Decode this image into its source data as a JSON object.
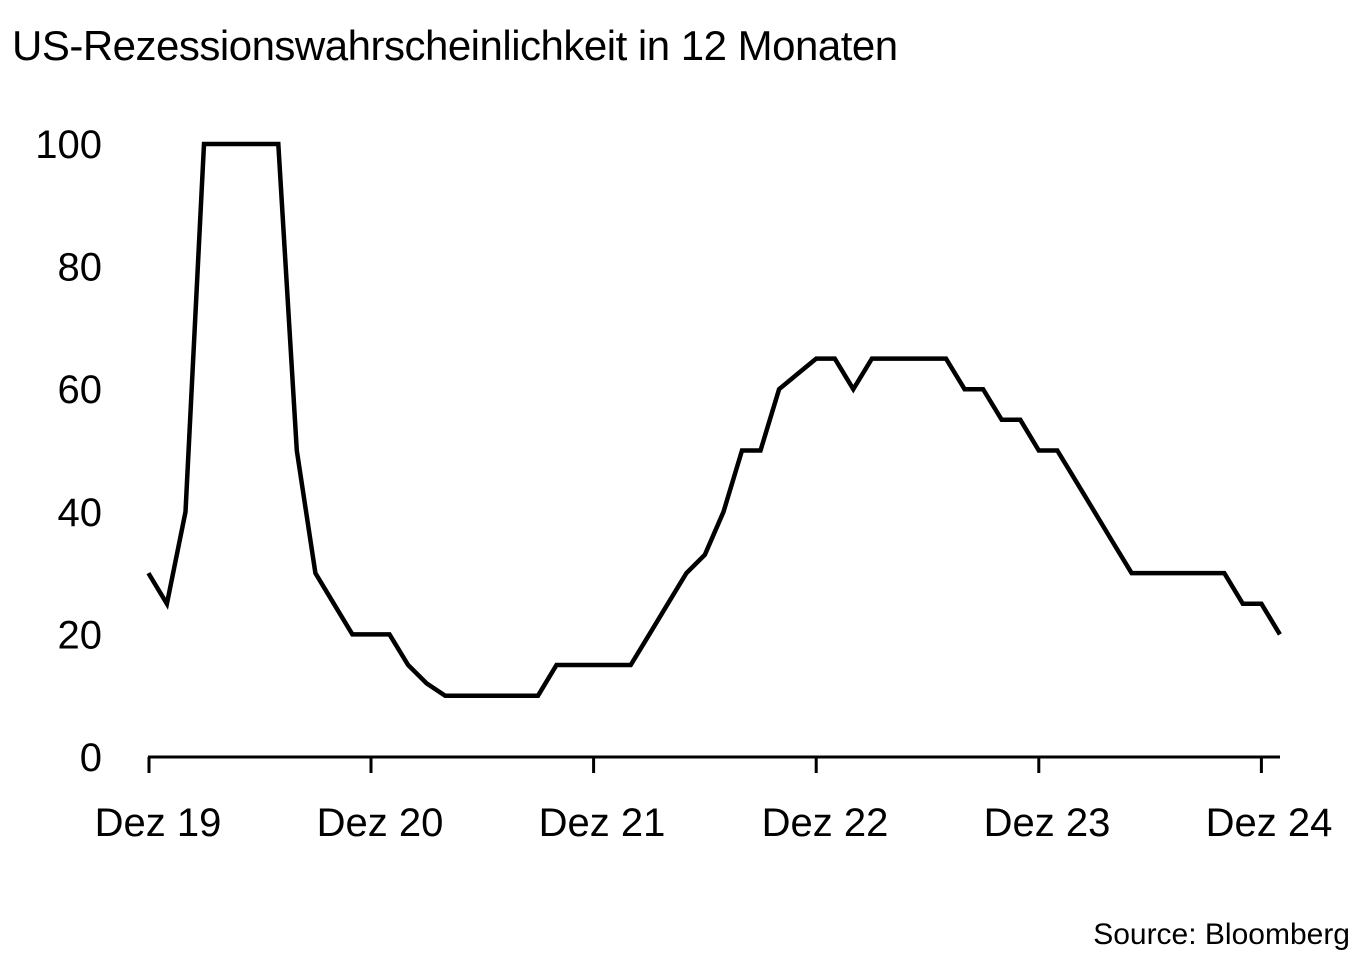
{
  "title": "US-Rezessionswahrscheinlichkeit in 12 Monaten",
  "source": "Source: Bloomberg",
  "colors": {
    "background": "#ffffff",
    "line": "#000000",
    "axis": "#000000",
    "text": "#000000"
  },
  "chart_data": {
    "type": "line",
    "title": "US-Rezessionswahrscheinlichkeit in 12 Monaten",
    "xlabel": "",
    "ylabel": "",
    "x_tick_labels": [
      "Dez 19",
      "Dez 20",
      "Dez 21",
      "Dez 22",
      "Dez 23",
      "Dez 24"
    ],
    "y_tick_labels": [
      "0",
      "20",
      "40",
      "60",
      "80",
      "100"
    ],
    "ylim": [
      0,
      100
    ],
    "xlim": [
      "2019-11",
      "2025-01"
    ],
    "grid": false,
    "legend": "none",
    "series": [
      {
        "x": [
          "2019-12",
          "2020-01",
          "2020-02",
          "2020-03",
          "2020-04",
          "2020-05",
          "2020-06",
          "2020-07",
          "2020-08",
          "2020-09",
          "2020-10",
          "2020-11",
          "2020-12",
          "2021-01",
          "2021-02",
          "2021-03",
          "2021-04",
          "2021-05",
          "2021-06",
          "2021-07",
          "2021-08",
          "2021-09",
          "2021-10",
          "2021-11",
          "2021-12",
          "2022-01",
          "2022-02",
          "2022-03",
          "2022-04",
          "2022-05",
          "2022-06",
          "2022-07",
          "2022-08",
          "2022-09",
          "2022-10",
          "2022-11",
          "2022-12",
          "2023-01",
          "2023-02",
          "2023-03",
          "2023-04",
          "2023-05",
          "2023-06",
          "2023-07",
          "2023-08",
          "2023-09",
          "2023-10",
          "2023-11",
          "2023-12",
          "2024-01",
          "2024-02",
          "2024-03",
          "2024-04",
          "2024-05",
          "2024-06",
          "2024-07",
          "2024-08",
          "2024-09",
          "2024-10",
          "2024-11",
          "2024-12",
          "2025-01"
        ],
        "values": [
          30,
          25,
          40,
          100,
          100,
          100,
          100,
          100,
          50,
          30,
          25,
          20,
          20,
          20,
          15,
          12,
          10,
          10,
          10,
          10,
          10,
          10,
          15,
          15,
          15,
          15,
          15,
          20,
          25,
          30,
          33,
          40,
          50,
          50,
          60,
          62.5,
          65,
          65,
          60,
          65,
          65,
          65,
          65,
          65,
          60,
          60,
          55,
          55,
          50,
          50,
          45,
          40,
          35,
          30,
          30,
          30,
          30,
          30,
          30,
          25,
          25,
          20
        ]
      }
    ]
  }
}
